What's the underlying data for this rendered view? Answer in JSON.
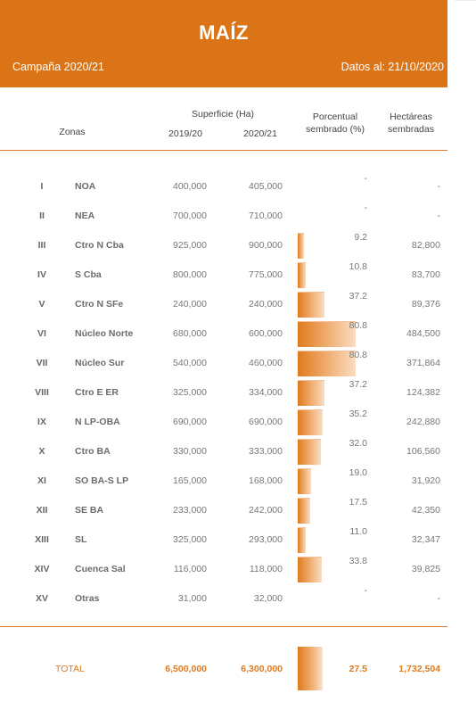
{
  "header": {
    "title": "MAÍZ",
    "campaign": "Campaña 2020/21",
    "date": "Datos al: 21/10/2020"
  },
  "columns": {
    "zonas": "Zonas",
    "superficie": "Superficie (Ha)",
    "y1": "2019/20",
    "y2": "2020/21",
    "pct_line1": "Porcentual",
    "pct_line2": "sembrado (%)",
    "ha_line1": "Hectáreas",
    "ha_line2": "sembradas"
  },
  "rows": [
    {
      "roman": "I",
      "zone": "NOA",
      "s19": "400,000",
      "s20": "405,000",
      "pct": "-",
      "pct_value": 0,
      "ha": "-"
    },
    {
      "roman": "II",
      "zone": "NEA",
      "s19": "700,000",
      "s20": "710,000",
      "pct": "-",
      "pct_value": 0,
      "ha": "-"
    },
    {
      "roman": "III",
      "zone": "Ctro N Cba",
      "s19": "925,000",
      "s20": "900,000",
      "pct": "9.2",
      "pct_value": 9.2,
      "ha": "82,800"
    },
    {
      "roman": "IV",
      "zone": "S Cba",
      "s19": "800,000",
      "s20": "775,000",
      "pct": "10.8",
      "pct_value": 10.8,
      "ha": "83,700"
    },
    {
      "roman": "V",
      "zone": "Ctro N SFe",
      "s19": "240,000",
      "s20": "240,000",
      "pct": "37.2",
      "pct_value": 37.2,
      "ha": "89,376"
    },
    {
      "roman": "VI",
      "zone": "Núcleo Norte",
      "s19": "680,000",
      "s20": "600,000",
      "pct": "80.8",
      "pct_value": 80.8,
      "ha": "484,500"
    },
    {
      "roman": "VII",
      "zone": "Núcleo Sur",
      "s19": "540,000",
      "s20": "460,000",
      "pct": "80.8",
      "pct_value": 80.8,
      "ha": "371,864"
    },
    {
      "roman": "VIII",
      "zone": "Ctro E ER",
      "s19": "325,000",
      "s20": "334,000",
      "pct": "37.2",
      "pct_value": 37.2,
      "ha": "124,382"
    },
    {
      "roman": "IX",
      "zone": "N LP-OBA",
      "s19": "690,000",
      "s20": "690,000",
      "pct": "35.2",
      "pct_value": 35.2,
      "ha": "242,880"
    },
    {
      "roman": "X",
      "zone": "Ctro BA",
      "s19": "330,000",
      "s20": "333,000",
      "pct": "32.0",
      "pct_value": 32.0,
      "ha": "106,560"
    },
    {
      "roman": "XI",
      "zone": "SO BA-S LP",
      "s19": "165,000",
      "s20": "168,000",
      "pct": "19.0",
      "pct_value": 19.0,
      "ha": "31,920"
    },
    {
      "roman": "XII",
      "zone": "SE BA",
      "s19": "233,000",
      "s20": "242,000",
      "pct": "17.5",
      "pct_value": 17.5,
      "ha": "42,350"
    },
    {
      "roman": "XIII",
      "zone": "SL",
      "s19": "325,000",
      "s20": "293,000",
      "pct": "11.0",
      "pct_value": 11.0,
      "ha": "32,347"
    },
    {
      "roman": "XIV",
      "zone": "Cuenca Sal",
      "s19": "116,000",
      "s20": "118,000",
      "pct": "33.8",
      "pct_value": 33.8,
      "ha": "39,825"
    },
    {
      "roman": "XV",
      "zone": "Otras",
      "s19": "31,000",
      "s20": "32,000",
      "pct": "-",
      "pct_value": 0,
      "ha": "-"
    }
  ],
  "total": {
    "label": "TOTAL",
    "s19": "6,500,000",
    "s20": "6,300,000",
    "pct": "27.5",
    "pct_value": 27.5,
    "ha": "1,732,504"
  },
  "colors": {
    "accent": "#db7416"
  }
}
